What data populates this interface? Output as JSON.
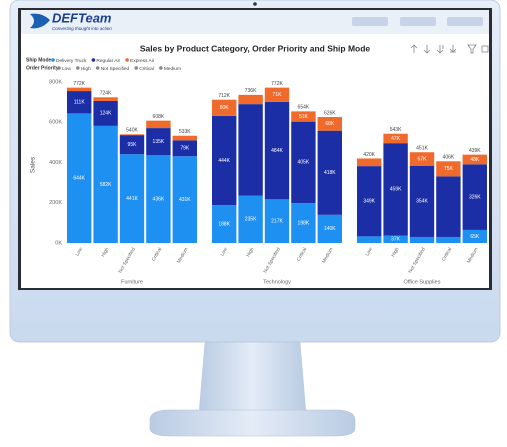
{
  "header": {
    "logo": "DEFTeam",
    "tagline": "Converting thought into action"
  },
  "chart_data": {
    "type": "stacked_bar",
    "title": "Sales by Product Category, Order Priority and Ship Mode",
    "ylabel": "Sales",
    "legend_title": "Ship Mode",
    "series": [
      {
        "name": "Delivery Truck",
        "color": "#1e90f2"
      },
      {
        "name": "Regular Air",
        "color": "#1b2ea6"
      },
      {
        "name": "Express Air",
        "color": "#f06a2c"
      }
    ],
    "priority_legend_title": "Order Priority",
    "priority_legend": [
      "Low",
      "High",
      "Not Specified",
      "Critical",
      "Medium"
    ],
    "ylim": [
      0,
      800000
    ],
    "yticks": [
      {
        "value": 0,
        "label": "0K"
      },
      {
        "value": 200000,
        "label": "200K"
      },
      {
        "value": 400000,
        "label": "400K"
      },
      {
        "value": 600000,
        "label": "600K"
      },
      {
        "value": 800000,
        "label": "800K"
      }
    ],
    "grid": false,
    "groups": [
      {
        "name": "Furniture",
        "categories": [
          "Low",
          "High",
          "Not Specified",
          "Critical",
          "Medium"
        ],
        "values": [
          [
            644000,
            582000,
            441000,
            436000,
            431000
          ],
          [
            111000,
            124000,
            95000,
            135000,
            79000
          ],
          [
            17000,
            18000,
            4000,
            37000,
            23000
          ]
        ],
        "value_labels": [
          [
            "644K",
            "582K",
            "441K",
            "436K",
            "431K"
          ],
          [
            "111K",
            "124K",
            "95K",
            "135K",
            "79K"
          ],
          [
            null,
            null,
            null,
            null,
            null
          ]
        ],
        "totals": [
          772000,
          724000,
          540000,
          608000,
          533000
        ],
        "total_labels": [
          "772K",
          "724K",
          "540K",
          "608K",
          "533K"
        ]
      },
      {
        "name": "Technology",
        "categories": [
          "Low",
          "High",
          "Not Specified",
          "Critical",
          "Medium"
        ],
        "values": [
          [
            188000,
            235000,
            217000,
            198000,
            140000
          ],
          [
            444000,
            455000,
            484000,
            405000,
            418000
          ],
          [
            80000,
            46000,
            71000,
            51000,
            68000
          ]
        ],
        "value_labels": [
          [
            "188K",
            "235K",
            "217K",
            "198K",
            "140K"
          ],
          [
            "444K",
            null,
            "484K",
            "405K",
            "418K"
          ],
          [
            "80K",
            null,
            "71K",
            "51K",
            "68K"
          ]
        ],
        "totals": [
          712000,
          736000,
          772000,
          654000,
          626000
        ],
        "total_labels": [
          "712K",
          "736K",
          "772K",
          "654K",
          "626K"
        ]
      },
      {
        "name": "Office Supplies",
        "categories": [
          "Low",
          "High",
          "Not Specified",
          "Critical",
          "Medium"
        ],
        "values": [
          [
            33000,
            37000,
            30000,
            30000,
            65000
          ],
          [
            349000,
            459000,
            354000,
            301000,
            326000
          ],
          [
            38000,
            47000,
            67000,
            75000,
            48000
          ]
        ],
        "value_labels": [
          [
            null,
            "37K",
            null,
            null,
            "65K"
          ],
          [
            "349K",
            "459K",
            "354K",
            null,
            "326K"
          ],
          [
            null,
            "47K",
            "67K",
            "75K",
            "48K"
          ]
        ],
        "totals": [
          420000,
          543000,
          451000,
          406000,
          439000
        ],
        "total_labels": [
          "420K",
          "543K",
          "451K",
          "406K",
          "439K"
        ]
      }
    ]
  }
}
